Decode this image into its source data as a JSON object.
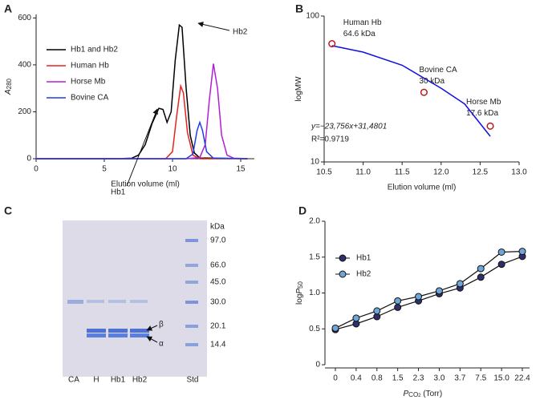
{
  "chart_data": [
    {
      "type": "line",
      "panel": "A",
      "xlabel": "Elution volume (ml)",
      "ylabel": "A",
      "ylabel_sub": "280",
      "xlim": [
        0,
        16
      ],
      "xticks": [
        0,
        5,
        10,
        15
      ],
      "ylim": [
        0,
        615
      ],
      "yticks": [
        0,
        200,
        400,
        600
      ],
      "series": [
        {
          "name": "Hb1 and Hb2",
          "color": "#000000",
          "x": [
            0,
            6,
            7,
            7.5,
            8,
            8.5,
            9,
            9.3,
            9.6,
            9.9,
            10.2,
            10.5,
            10.7,
            11,
            11.3,
            11.6,
            12,
            15.5
          ],
          "values": [
            0,
            0,
            2,
            15,
            60,
            150,
            215,
            210,
            155,
            200,
            420,
            570,
            560,
            300,
            100,
            25,
            3,
            0
          ]
        },
        {
          "name": "Human Hb",
          "color": "#e8211d",
          "x": [
            0,
            9.5,
            10,
            10.3,
            10.6,
            10.8,
            11.1,
            11.5,
            12,
            15.5
          ],
          "values": [
            0,
            0,
            30,
            180,
            310,
            280,
            110,
            15,
            0,
            0
          ]
        },
        {
          "name": "Horse Mb",
          "color": "#b21fd6",
          "x": [
            0,
            11,
            12,
            12.4,
            12.7,
            13,
            13.3,
            13.6,
            14,
            14.5,
            15.5
          ],
          "values": [
            0,
            0,
            5,
            60,
            250,
            405,
            300,
            100,
            15,
            2,
            0
          ]
        },
        {
          "name": "Bovine CA",
          "color": "#1f3fe0",
          "x": [
            0,
            11,
            11.5,
            11.8,
            12,
            12.2,
            12.5,
            13,
            15.5
          ],
          "values": [
            0,
            0,
            20,
            120,
            155,
            120,
            30,
            2,
            0
          ]
        }
      ],
      "annotations": [
        "Hb1",
        "Hb2"
      ]
    },
    {
      "type": "scatter",
      "panel": "B",
      "xlabel": "Elution volume (ml)",
      "ylabel": "logMW",
      "log_y": true,
      "xlim": [
        10.5,
        13.0
      ],
      "xticks": [
        10.5,
        {
          "value": 11,
          "label": "11.0"
        },
        11.5,
        {
          "value": 12,
          "label": "12.0"
        },
        12.5,
        {
          "value": 13,
          "label": "13.0"
        }
      ],
      "ylim": [
        10,
        100
      ],
      "yticks": [
        10,
        100
      ],
      "points": {
        "color": "#c0171b",
        "x": [
          10.6,
          11.78,
          12.63
        ],
        "values": [
          64.6,
          30,
          17.6
        ],
        "labels": [
          "Human Hb",
          "Bovine CA",
          "Horse Mb"
        ],
        "value_labels": [
          "64.6 kDa",
          "30 kDa",
          "17.6 kDa"
        ]
      },
      "fit_line": {
        "color": "#1010e0",
        "x": [
          10.6,
          11,
          11.5,
          12,
          12.3,
          12.63
        ],
        "values": [
          62.6,
          56.6,
          46,
          32,
          25,
          15
        ]
      },
      "equation": "y=−23,756x+31,4801",
      "r_squared": "R²=0.9719"
    },
    {
      "type": "line",
      "panel": "D",
      "ylabel": [
        "log",
        "P",
        "50"
      ],
      "xlabel": [
        "P",
        "CO",
        "2",
        " (Torr)"
      ],
      "categories": [
        "0",
        "0.4",
        "0.8",
        "1.5",
        "2.3",
        "3.0",
        "3.7",
        "7.5",
        "15.0",
        "22.4"
      ],
      "ylim": [
        0,
        2
      ],
      "yticks": [
        0,
        0.5,
        {
          "value": 1,
          "label": "1.0"
        },
        1.5,
        {
          "value": 2,
          "label": "2.0"
        }
      ],
      "series": [
        {
          "name": "Hb1",
          "color": "#2e2f6b",
          "values": [
            0.49,
            0.57,
            0.67,
            0.8,
            0.89,
            0.99,
            1.07,
            1.22,
            1.4,
            1.51
          ]
        },
        {
          "name": "Hb2",
          "color": "#6ea6d8",
          "values": [
            0.51,
            0.65,
            0.75,
            0.89,
            0.95,
            1.03,
            1.13,
            1.34,
            1.57,
            1.58
          ]
        }
      ]
    }
  ],
  "gel": {
    "panel": "C",
    "unit": "kDa",
    "markers": [
      "97.0",
      "66.0",
      "45.0",
      "30.0",
      "20.1",
      "14.4"
    ],
    "lanes": [
      "CA",
      "H",
      "Hb1",
      "Hb2",
      "Std"
    ],
    "bands": [
      "β",
      "α"
    ]
  }
}
